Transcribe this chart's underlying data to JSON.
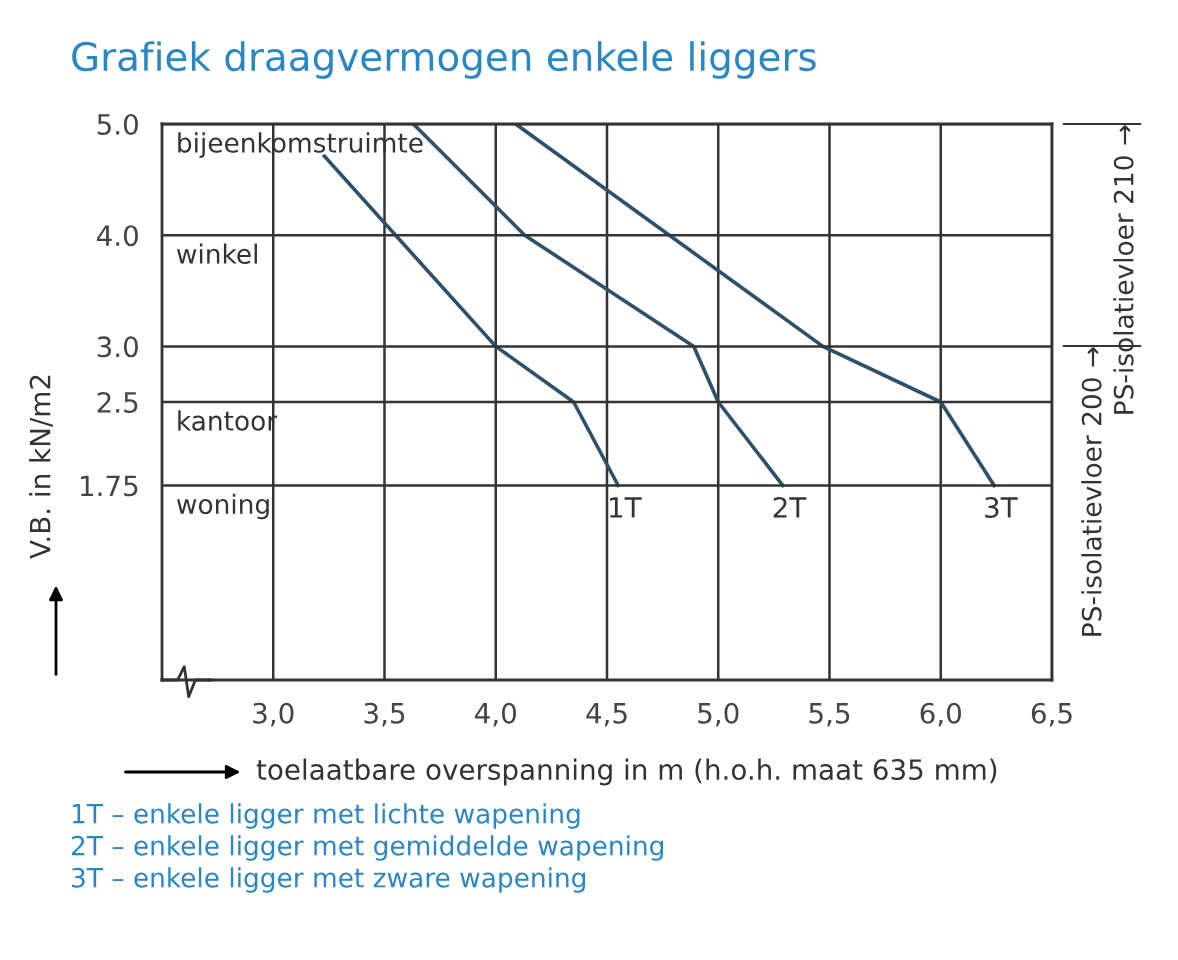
{
  "chart_data": {
    "type": "line",
    "title": "Grafiek draagvermogen enkele liggers",
    "xlabel": "toelaatbare overspanning in m (h.o.h. maat 635 mm)",
    "ylabel": "V.B. in kN/m2",
    "xlim": [
      2.5,
      6.5
    ],
    "xticks": [
      {
        "value": 3.0,
        "label": "3,0"
      },
      {
        "value": 3.5,
        "label": "3,5"
      },
      {
        "value": 4.0,
        "label": "4,0"
      },
      {
        "value": 4.5,
        "label": "4,5"
      },
      {
        "value": 5.0,
        "label": "5,0"
      },
      {
        "value": 5.5,
        "label": "5,5"
      },
      {
        "value": 6.0,
        "label": "6,0"
      },
      {
        "value": 6.5,
        "label": "6,5"
      }
    ],
    "ylim": [
      0,
      5
    ],
    "yticks": [
      1.75,
      {
        "value": 2.5,
        "label": "2.5"
      },
      {
        "value": 3,
        "label": "3.0"
      },
      {
        "value": 4,
        "label": "4.0"
      },
      {
        "value": 5,
        "label": "5.0"
      }
    ],
    "grid": "x",
    "legend": false,
    "marker": "none",
    "line_style": "solid",
    "series": [
      {
        "name": "1T",
        "color": "#2f5069",
        "x": [
          3.23,
          4.0,
          4.35,
          4.55
        ],
        "values": [
          4.71,
          3.0,
          2.5,
          1.75
        ]
      },
      {
        "name": "2T",
        "color": "#2f5069",
        "x": [
          3.63,
          4.13,
          4.89,
          5.0,
          5.29
        ],
        "values": [
          5.0,
          4.0,
          3.0,
          2.5,
          1.75
        ]
      },
      {
        "name": "3T",
        "color": "#2f5069",
        "x": [
          4.09,
          5.47,
          6.0,
          6.24
        ],
        "values": [
          5.0,
          3.0,
          2.5,
          1.75
        ]
      }
    ],
    "ref_lines": [
      {
        "axis": "y",
        "value": 5,
        "label": "bijeenkomstruimte",
        "color": "#333333"
      },
      {
        "axis": "y",
        "value": 4,
        "label": "winkel",
        "color": "#333333"
      },
      {
        "axis": "y",
        "value": 3,
        "color": "#333333"
      },
      {
        "axis": "y",
        "value": 2.5,
        "label": "kantoor",
        "color": "#333333"
      },
      {
        "axis": "y",
        "value": 1.75,
        "label": "woning",
        "color": "#333333"
      }
    ],
    "annotations": [
      "PS-isolatievloer 210 →",
      "PS-isolatievloer 200 →",
      "1T – enkele ligger met lichte wapening",
      "2T – enkele ligger met gemiddelde wapening",
      "3T – enkele ligger met zware wapening"
    ]
  }
}
